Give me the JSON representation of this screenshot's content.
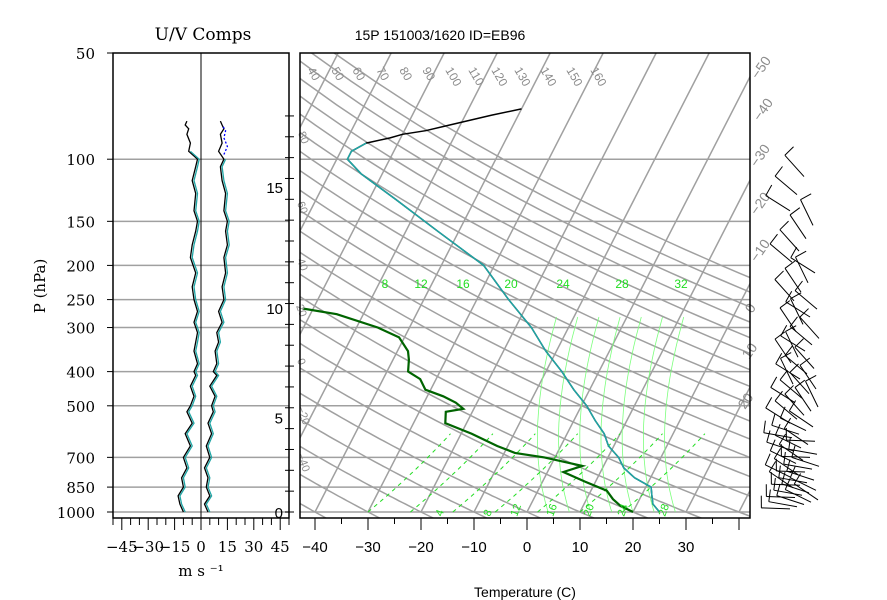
{
  "chart_data": [
    {
      "type": "line",
      "title": "U/V Comps",
      "xlabel": "m s ⁻¹",
      "ylabel": "P (hPa)",
      "x_ticks": [
        "−45",
        "−30",
        "−15",
        "0",
        "15",
        "30",
        "45"
      ],
      "x_tick_values": [
        -45,
        -30,
        -15,
        0,
        15,
        30,
        45
      ],
      "xlim": [
        -50,
        50
      ],
      "y_ticks": [
        "50",
        "100",
        "150",
        "200",
        "250",
        "300",
        "400",
        "500",
        "700",
        "850",
        "1000"
      ],
      "y_tick_values": [
        50,
        100,
        150,
        200,
        250,
        300,
        400,
        500,
        700,
        850,
        1000
      ],
      "ylim": [
        1000,
        50
      ],
      "y_scale": "log",
      "grid": true,
      "series": [
        {
          "color": "#000000",
          "points": [
            [
              -10,
              1000
            ],
            [
              -12,
              950
            ],
            [
              -13,
              900
            ],
            [
              -10,
              850
            ],
            [
              -11,
              800
            ],
            [
              -8,
              750
            ],
            [
              -10,
              700
            ],
            [
              -6,
              650
            ],
            [
              -9,
              600
            ],
            [
              -5,
              560
            ],
            [
              -8,
              520
            ],
            [
              -6,
              500
            ],
            [
              -4,
              470
            ],
            [
              -6,
              440
            ],
            [
              -3,
              410
            ],
            [
              -4,
              400
            ],
            [
              -2,
              380
            ],
            [
              -4,
              350
            ],
            [
              -3,
              330
            ],
            [
              -2,
              310
            ],
            [
              -4,
              290
            ],
            [
              -2,
              270
            ],
            [
              -4,
              250
            ],
            [
              -5,
              230
            ],
            [
              -3,
              210
            ],
            [
              -6,
              190
            ],
            [
              -5,
              175
            ],
            [
              -3,
              160
            ],
            [
              -2,
              150
            ],
            [
              -4,
              140
            ],
            [
              -3,
              125
            ],
            [
              -5,
              115
            ],
            [
              -3,
              105
            ],
            [
              -2,
              100
            ],
            [
              -7,
              95
            ],
            [
              -6,
              90
            ],
            [
              -8,
              85
            ],
            [
              -7,
              82
            ],
            [
              -9,
              80
            ],
            [
              -8,
              78
            ]
          ]
        },
        {
          "color": "#1fa6a6",
          "points": [
            [
              -9,
              1000
            ],
            [
              -11,
              950
            ],
            [
              -12,
              900
            ],
            [
              -9,
              850
            ],
            [
              -10,
              800
            ],
            [
              -7,
              750
            ],
            [
              -9,
              700
            ],
            [
              -5,
              650
            ],
            [
              -8,
              600
            ],
            [
              -4,
              560
            ],
            [
              -7,
              520
            ],
            [
              -5,
              500
            ],
            [
              -3,
              470
            ],
            [
              -5,
              440
            ],
            [
              -2,
              410
            ],
            [
              -3,
              400
            ],
            [
              -1,
              380
            ],
            [
              -3,
              350
            ],
            [
              -2,
              330
            ],
            [
              -1,
              310
            ],
            [
              -3,
              290
            ],
            [
              -1,
              270
            ],
            [
              -3,
              250
            ],
            [
              -4,
              230
            ],
            [
              -2,
              210
            ],
            [
              -5,
              190
            ],
            [
              -4,
              175
            ],
            [
              -2,
              160
            ],
            [
              -1,
              150
            ],
            [
              -3,
              140
            ],
            [
              -2,
              125
            ],
            [
              -4,
              115
            ],
            [
              -2,
              105
            ],
            [
              -1,
              100
            ],
            [
              -6,
              95
            ]
          ]
        },
        {
          "color": "#000000",
          "points": [
            [
              4,
              1000
            ],
            [
              2,
              950
            ],
            [
              5,
              900
            ],
            [
              3,
              850
            ],
            [
              4,
              800
            ],
            [
              2,
              750
            ],
            [
              5,
              700
            ],
            [
              3,
              650
            ],
            [
              6,
              600
            ],
            [
              4,
              560
            ],
            [
              7,
              520
            ],
            [
              6,
              500
            ],
            [
              8,
              470
            ],
            [
              5,
              440
            ],
            [
              9,
              410
            ],
            [
              7,
              400
            ],
            [
              9,
              380
            ],
            [
              8,
              350
            ],
            [
              10,
              330
            ],
            [
              9,
              310
            ],
            [
              12,
              290
            ],
            [
              10,
              270
            ],
            [
              13,
              250
            ],
            [
              12,
              230
            ],
            [
              14,
              210
            ],
            [
              13,
              190
            ],
            [
              15,
              175
            ],
            [
              14,
              160
            ],
            [
              15,
              150
            ],
            [
              13,
              140
            ],
            [
              14,
              125
            ],
            [
              12,
              115
            ],
            [
              11,
              105
            ],
            [
              13,
              100
            ],
            [
              10,
              95
            ],
            [
              12,
              90
            ],
            [
              11,
              85
            ],
            [
              13,
              82
            ],
            [
              12,
              80
            ],
            [
              11,
              78
            ]
          ]
        },
        {
          "color": "#1fa6a6",
          "points": [
            [
              5,
              1000
            ],
            [
              3,
              950
            ],
            [
              6,
              900
            ],
            [
              4,
              850
            ],
            [
              5,
              800
            ],
            [
              3,
              750
            ],
            [
              6,
              700
            ],
            [
              4,
              650
            ],
            [
              7,
              600
            ],
            [
              5,
              560
            ],
            [
              8,
              520
            ],
            [
              7,
              500
            ],
            [
              9,
              470
            ],
            [
              6,
              440
            ],
            [
              10,
              410
            ],
            [
              8,
              400
            ],
            [
              10,
              380
            ],
            [
              9,
              350
            ],
            [
              11,
              330
            ],
            [
              10,
              310
            ],
            [
              13,
              290
            ],
            [
              11,
              270
            ],
            [
              14,
              250
            ],
            [
              13,
              230
            ],
            [
              15,
              210
            ],
            [
              14,
              190
            ],
            [
              16,
              175
            ],
            [
              15,
              160
            ],
            [
              16,
              150
            ],
            [
              14,
              140
            ],
            [
              15,
              125
            ],
            [
              13,
              115
            ],
            [
              12,
              105
            ],
            [
              14,
              100
            ]
          ]
        },
        {
          "color": "#0000ff",
          "points": [
            [
              13,
              97
            ],
            [
              15,
              92
            ],
            [
              13,
              87
            ],
            [
              14,
              83
            ],
            [
              12,
              80
            ]
          ]
        }
      ]
    },
    {
      "type": "line",
      "title": "15P 151003/1620 ID=EB96",
      "xlabel": "Temperature (C)",
      "x_ticks": [
        "−40",
        "−30",
        "−20",
        "−10",
        "0",
        "10",
        "20",
        "30"
      ],
      "x_tick_values": [
        -40,
        -30,
        -20,
        -10,
        0,
        10,
        20,
        30
      ],
      "height_ticks": [
        "0",
        "5",
        "10",
        "15"
      ],
      "height_tick_pressures": [
        1000,
        540,
        264,
        120
      ],
      "pressure_gridlines": [
        100,
        150,
        200,
        250,
        300,
        400,
        500,
        700,
        850,
        1000
      ],
      "dry_adiabat_labels": [
        "40",
        "50",
        "60",
        "70",
        "80",
        "90",
        "100",
        "110",
        "120",
        "130",
        "140",
        "150",
        "160"
      ],
      "mixing_ratio_labels": [
        "8",
        "12",
        "16",
        "20",
        "24",
        "28",
        "32"
      ],
      "lower_green_labels": [
        "4",
        "8",
        "12",
        "16",
        "20",
        "24",
        "28"
      ],
      "right_isotherm_labels": [
        "−50",
        "−40",
        "−30",
        "−20",
        "−10",
        "0",
        "10",
        "20"
      ],
      "series": [
        {
          "name": "temperature",
          "color": "#000000",
          "points": [
            [
              25,
              1000
            ],
            [
              23,
              950
            ],
            [
              22,
              900
            ],
            [
              21,
              850
            ],
            [
              17,
              800
            ],
            [
              14,
              750
            ],
            [
              12,
              700
            ],
            [
              9,
              650
            ],
            [
              7,
              600
            ],
            [
              4,
              550
            ],
            [
              1,
              500
            ],
            [
              -3,
              450
            ],
            [
              -7,
              400
            ],
            [
              -12,
              350
            ],
            [
              -17,
              300
            ],
            [
              -24,
              250
            ],
            [
              -32,
              200
            ],
            [
              -44,
              160
            ],
            [
              -55,
              130
            ],
            [
              -64,
              110
            ],
            [
              -68,
              100
            ],
            [
              -68,
              95
            ],
            [
              -66,
              90
            ],
            [
              -62,
              87
            ],
            [
              -60,
              85
            ],
            [
              -56,
              83
            ],
            [
              -52,
              80
            ],
            [
              -45,
              75
            ],
            [
              -40,
              72
            ]
          ]
        },
        {
          "name": "temperature-trace",
          "color": "#1fa6a6",
          "points": [
            [
              25,
              1000
            ],
            [
              23,
              950
            ],
            [
              22,
              900
            ],
            [
              21,
              850
            ],
            [
              17,
              800
            ],
            [
              14,
              750
            ],
            [
              12,
              700
            ],
            [
              9,
              650
            ],
            [
              7,
              600
            ],
            [
              4,
              550
            ],
            [
              1,
              500
            ],
            [
              -3,
              450
            ],
            [
              -7,
              400
            ],
            [
              -12,
              350
            ],
            [
              -17,
              300
            ],
            [
              -24,
              250
            ],
            [
              -32,
              200
            ],
            [
              -44,
              160
            ],
            [
              -55,
              130
            ],
            [
              -64,
              110
            ],
            [
              -68,
              100
            ],
            [
              -68,
              95
            ],
            [
              -66,
              90
            ]
          ]
        },
        {
          "name": "dewpoint",
          "color": "#006400",
          "points": [
            [
              20,
              1000
            ],
            [
              17,
              960
            ],
            [
              15,
              920
            ],
            [
              13,
              870
            ],
            [
              8,
              820
            ],
            [
              3,
              770
            ],
            [
              6,
              740
            ],
            [
              2,
              720
            ],
            [
              -2,
              700
            ],
            [
              -8,
              680
            ],
            [
              -12,
              650
            ],
            [
              -18,
              600
            ],
            [
              -24,
              560
            ],
            [
              -25,
              520
            ],
            [
              -22,
              510
            ],
            [
              -24,
              490
            ],
            [
              -27,
              470
            ],
            [
              -31,
              450
            ],
            [
              -33,
              420
            ],
            [
              -36,
              400
            ],
            [
              -37,
              370
            ],
            [
              -38,
              350
            ],
            [
              -41,
              320
            ],
            [
              -46,
              300
            ],
            [
              -55,
              275
            ],
            [
              -62,
              265
            ]
          ]
        }
      ]
    }
  ]
}
